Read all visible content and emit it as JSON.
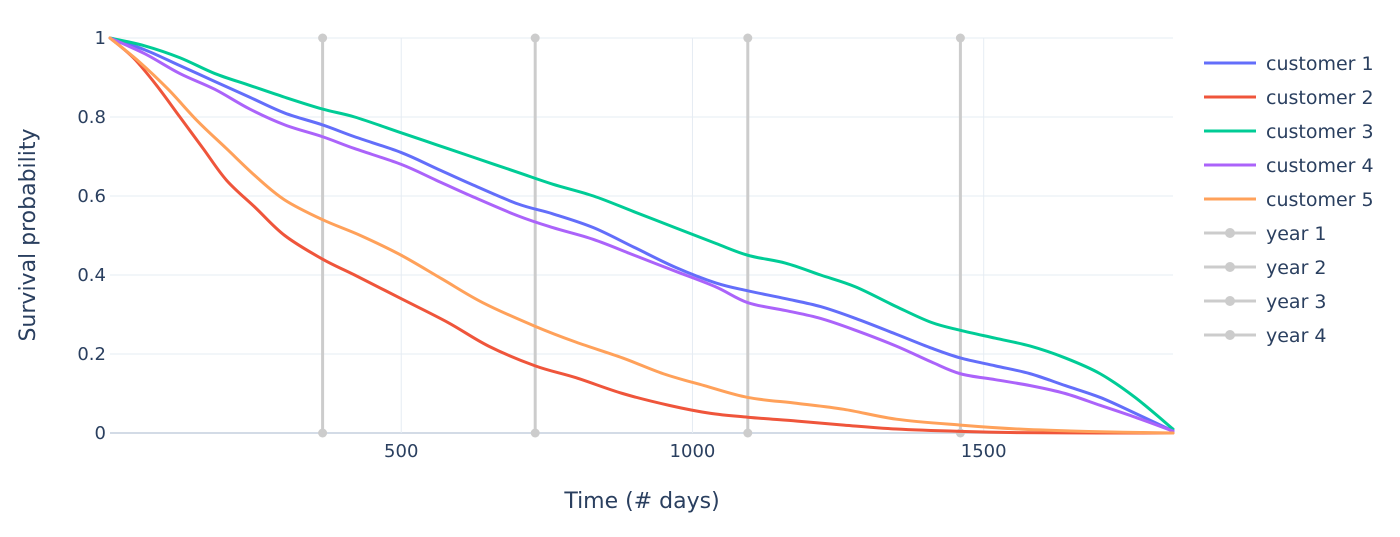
{
  "chart_data": {
    "type": "line",
    "title": "",
    "xlabel": "Time (# days)",
    "ylabel": "Survival probability",
    "xlim": [
      0,
      1825
    ],
    "ylim": [
      0,
      1
    ],
    "x_ticks": [
      500,
      1000,
      1500
    ],
    "y_ticks": [
      0,
      0.2,
      0.4,
      0.6,
      0.8,
      1
    ],
    "grid": true,
    "legend_position": "right",
    "series": [
      {
        "name": "customer 1",
        "color": "#636efa",
        "x": [
          0,
          60,
          120,
          180,
          240,
          300,
          365,
          420,
          500,
          560,
          620,
          700,
          760,
          830,
          900,
          970,
          1040,
          1095,
          1160,
          1220,
          1280,
          1350,
          1410,
          1460,
          1520,
          1580,
          1640,
          1700,
          1760,
          1825
        ],
        "y": [
          1,
          0.97,
          0.93,
          0.89,
          0.85,
          0.81,
          0.78,
          0.75,
          0.71,
          0.67,
          0.63,
          0.58,
          0.555,
          0.52,
          0.47,
          0.42,
          0.38,
          0.36,
          0.34,
          0.32,
          0.29,
          0.25,
          0.215,
          0.19,
          0.17,
          0.15,
          0.12,
          0.09,
          0.05,
          0.005
        ]
      },
      {
        "name": "customer 2",
        "color": "#ef553b",
        "x": [
          0,
          40,
          80,
          120,
          160,
          200,
          250,
          300,
          365,
          420,
          500,
          580,
          650,
          730,
          800,
          880,
          960,
          1030,
          1095,
          1180,
          1260,
          1350,
          1460,
          1560,
          1700,
          1825
        ],
        "y": [
          1,
          0.95,
          0.88,
          0.8,
          0.72,
          0.64,
          0.57,
          0.5,
          0.44,
          0.4,
          0.34,
          0.28,
          0.22,
          0.17,
          0.14,
          0.1,
          0.07,
          0.05,
          0.04,
          0.03,
          0.02,
          0.01,
          0.004,
          0.001,
          0,
          0
        ]
      },
      {
        "name": "customer 3",
        "color": "#00cc96",
        "x": [
          0,
          60,
          120,
          180,
          240,
          300,
          365,
          420,
          500,
          560,
          620,
          700,
          760,
          830,
          900,
          970,
          1040,
          1095,
          1160,
          1220,
          1280,
          1350,
          1410,
          1460,
          1520,
          1580,
          1640,
          1700,
          1760,
          1825
        ],
        "y": [
          1,
          0.98,
          0.95,
          0.91,
          0.88,
          0.85,
          0.82,
          0.8,
          0.76,
          0.73,
          0.7,
          0.66,
          0.63,
          0.6,
          0.56,
          0.52,
          0.48,
          0.45,
          0.43,
          0.4,
          0.37,
          0.32,
          0.28,
          0.26,
          0.24,
          0.22,
          0.19,
          0.15,
          0.09,
          0.01
        ]
      },
      {
        "name": "customer 4",
        "color": "#ab63fa",
        "x": [
          0,
          60,
          120,
          180,
          240,
          300,
          365,
          420,
          500,
          560,
          620,
          700,
          760,
          830,
          900,
          970,
          1040,
          1095,
          1160,
          1220,
          1280,
          1350,
          1410,
          1460,
          1520,
          1580,
          1640,
          1700,
          1760,
          1825
        ],
        "y": [
          1,
          0.96,
          0.91,
          0.87,
          0.82,
          0.78,
          0.75,
          0.72,
          0.68,
          0.64,
          0.6,
          0.55,
          0.52,
          0.49,
          0.45,
          0.41,
          0.37,
          0.33,
          0.31,
          0.29,
          0.26,
          0.22,
          0.18,
          0.15,
          0.135,
          0.12,
          0.1,
          0.07,
          0.04,
          0.005
        ]
      },
      {
        "name": "customer 5",
        "color": "#ffa15a",
        "x": [
          0,
          50,
          100,
          150,
          200,
          250,
          300,
          365,
          430,
          500,
          570,
          640,
          730,
          800,
          880,
          950,
          1020,
          1095,
          1180,
          1260,
          1350,
          1460,
          1560,
          1650,
          1740,
          1825
        ],
        "y": [
          1,
          0.94,
          0.87,
          0.79,
          0.72,
          0.65,
          0.59,
          0.54,
          0.5,
          0.45,
          0.39,
          0.33,
          0.27,
          0.23,
          0.19,
          0.15,
          0.12,
          0.09,
          0.075,
          0.06,
          0.035,
          0.02,
          0.01,
          0.005,
          0.002,
          0
        ]
      },
      {
        "name": "year 1",
        "color": "#cccccc",
        "markers": true,
        "x": [
          365,
          365
        ],
        "y": [
          0,
          1
        ]
      },
      {
        "name": "year 2",
        "color": "#cccccc",
        "markers": true,
        "x": [
          730,
          730
        ],
        "y": [
          0,
          1
        ]
      },
      {
        "name": "year 3",
        "color": "#cccccc",
        "markers": true,
        "x": [
          1095,
          1095
        ],
        "y": [
          0,
          1
        ]
      },
      {
        "name": "year 4",
        "color": "#cccccc",
        "markers": true,
        "x": [
          1460,
          1460
        ],
        "y": [
          0,
          1
        ]
      }
    ]
  }
}
